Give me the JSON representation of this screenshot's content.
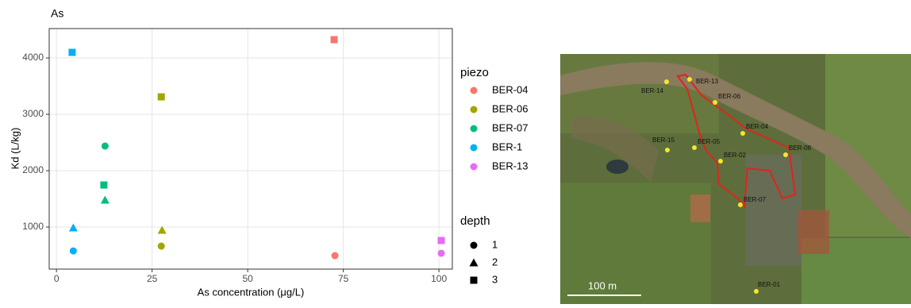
{
  "chart_data": {
    "type": "scatter",
    "title": "As",
    "xlabel": "As concentration (μg/L)",
    "ylabel": "Kd (L/kg)",
    "xlim": [
      -1.9,
      103.5
    ],
    "ylim": [
      254,
      4521
    ],
    "xticks": [
      0,
      25,
      50,
      75,
      100
    ],
    "yticks": [
      1000,
      2000,
      3000,
      4000
    ],
    "grid": true,
    "legend_title": "piezo",
    "shape_legend_title": "depth",
    "shape_legend": [
      1,
      2,
      3
    ],
    "series": [
      {
        "name": "BER-04",
        "color": "#f8766d",
        "x": [
          72.8,
          72.6
        ],
        "values": [
          493,
          4324
        ],
        "depth": [
          1,
          3
        ]
      },
      {
        "name": "BER-06",
        "color": "#a3a500",
        "x": [
          27.4,
          27.6,
          27.4
        ],
        "values": [
          3310,
          944,
          662
        ],
        "depth": [
          3,
          2,
          1
        ]
      },
      {
        "name": "BER-07",
        "color": "#00bf7d",
        "x": [
          12.7,
          12.4,
          12.7
        ],
        "values": [
          2437,
          1746,
          1479
        ],
        "depth": [
          1,
          3,
          2
        ]
      },
      {
        "name": "BER-1",
        "color": "#00b0f6",
        "x": [
          4.1,
          4.4,
          4.4
        ],
        "values": [
          4099,
          986,
          577
        ],
        "depth": [
          3,
          2,
          1
        ]
      },
      {
        "name": "BER-13",
        "color": "#e76bf3",
        "x": [
          100.6,
          100.6
        ],
        "values": [
          761,
          535
        ],
        "depth": [
          3,
          1
        ]
      }
    ]
  },
  "map": {
    "labels": [
      "BER-13",
      "BER-14",
      "BER-06",
      "BER-04",
      "BER-15",
      "BER-05",
      "BER-02",
      "BER-08",
      "BER-07",
      "BER-01"
    ],
    "scale": "100 m"
  }
}
